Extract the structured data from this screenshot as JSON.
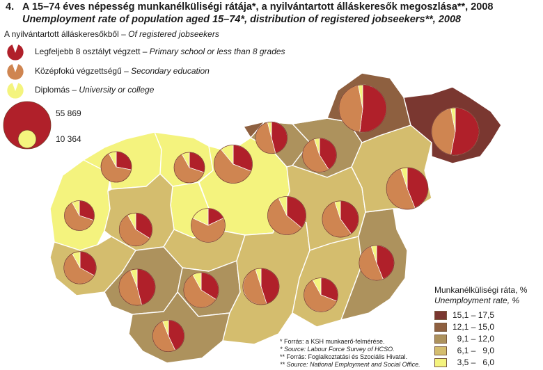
{
  "title": {
    "number": "4.",
    "hungarian": "A 15–74 éves népesség munkanélküliségi rátája*, a nyilvántartott álláskeresők megoszlása**, 2008",
    "english": "Unemployment rate of population aged 15–74*, distribution of registered jobseekers**, 2008"
  },
  "pie_legend": {
    "heading_hu": "A nyilvántartott álláskeresőkből – ",
    "heading_en": "Of registered jobseekers",
    "items": [
      {
        "hu": "Legfeljebb 8 osztályt végzett – ",
        "en": "Primary school or less than 8 grades",
        "color": "#b0202a"
      },
      {
        "hu": "Középfokú végzettségű – ",
        "en": "Secondary education",
        "color": "#cf8551"
      },
      {
        "hu": "Diplomás – ",
        "en": "University or college",
        "color": "#f4f47e"
      }
    ],
    "size_max": "55 869",
    "size_min": "10 364"
  },
  "rate_legend": {
    "title_hu": "Munkanélküliségi ráta, %",
    "title_en": "Unemployment rate, %",
    "classes": [
      {
        "label": "15,1 – 17,5",
        "color": "#7a3730"
      },
      {
        "label": "12,1 – 15,0",
        "color": "#8e6040"
      },
      {
        "label": "  9,1 – 12,0",
        "color": "#ad925d"
      },
      {
        "label": "  6,1 –   9,0",
        "color": "#d4bd6e"
      },
      {
        "label": "  3,5 –   6,0",
        "color": "#f4f37e"
      }
    ]
  },
  "notes": [
    "*  Forrás: a KSH munkaerő-felmérése.",
    "*  Source: Labour Force Survey of HCSO.",
    "** Forrás: Foglalkoztatási és Szociális Hivatal.",
    "** Source: National Employment and Social Office."
  ],
  "regions": [
    {
      "id": "vas",
      "rate_class": 4,
      "primary": 0.3,
      "secondary": 0.62,
      "univ": 0.08,
      "jobseekers_scale": 0.48
    },
    {
      "id": "gyor",
      "rate_class": 4,
      "primary": 0.28,
      "secondary": 0.64,
      "univ": 0.08,
      "jobseekers_scale": 0.5
    },
    {
      "id": "komarom",
      "rate_class": 4,
      "primary": 0.3,
      "secondary": 0.62,
      "univ": 0.08,
      "jobseekers_scale": 0.5
    },
    {
      "id": "pest",
      "rate_class": 4,
      "primary": 0.31,
      "secondary": 0.58,
      "univ": 0.11,
      "jobseekers_scale": 0.73
    },
    {
      "id": "budapest",
      "rate_class": 4,
      "primary": 0.18,
      "secondary": 0.64,
      "univ": 0.18,
      "jobseekers_scale": 0.6
    },
    {
      "id": "veszprem",
      "rate_class": 3,
      "primary": 0.34,
      "secondary": 0.58,
      "univ": 0.08,
      "jobseekers_scale": 0.57
    },
    {
      "id": "fejer",
      "rate_class": 3,
      "primary": 0.34,
      "secondary": 0.58,
      "univ": 0.08,
      "jobseekers_scale": 0.63
    },
    {
      "id": "zala",
      "rate_class": 3,
      "primary": 0.33,
      "secondary": 0.59,
      "univ": 0.08,
      "jobseekers_scale": 0.55
    },
    {
      "id": "nograd",
      "rate_class": 2,
      "primary": 0.46,
      "secondary": 0.5,
      "univ": 0.04,
      "jobseekers_scale": 0.53
    },
    {
      "id": "somogy",
      "rate_class": 2,
      "primary": 0.46,
      "secondary": 0.48,
      "univ": 0.06,
      "jobseekers_scale": 0.67
    },
    {
      "id": "tolna",
      "rate_class": 2,
      "primary": 0.43,
      "secondary": 0.51,
      "univ": 0.06,
      "jobseekers_scale": 0.53
    },
    {
      "id": "baranya",
      "rate_class": 2,
      "primary": 0.45,
      "secondary": 0.5,
      "univ": 0.05,
      "jobseekers_scale": 0.67
    },
    {
      "id": "heves",
      "rate_class": 2,
      "primary": 0.41,
      "secondary": 0.54,
      "univ": 0.05,
      "jobseekers_scale": 0.6
    },
    {
      "id": "bekes",
      "rate_class": 2,
      "primary": 0.44,
      "secondary": 0.51,
      "univ": 0.05,
      "jobseekers_scale": 0.63
    },
    {
      "id": "bacs",
      "rate_class": 3,
      "primary": 0.36,
      "secondary": 0.57,
      "univ": 0.07,
      "jobseekers_scale": 0.73
    },
    {
      "id": "jasz",
      "rate_class": 3,
      "primary": 0.4,
      "secondary": 0.55,
      "univ": 0.05,
      "jobseekers_scale": 0.67
    },
    {
      "id": "csongrad",
      "rate_class": 3,
      "primary": 0.31,
      "secondary": 0.61,
      "univ": 0.08,
      "jobseekers_scale": 0.6
    },
    {
      "id": "hajdu",
      "rate_class": 3,
      "primary": 0.44,
      "secondary": 0.51,
      "univ": 0.05,
      "jobseekers_scale": 0.83
    },
    {
      "id": "borsod",
      "rate_class": 1,
      "primary": 0.52,
      "secondary": 0.45,
      "univ": 0.03,
      "jobseekers_scale": 1.0
    },
    {
      "id": "szabolcs",
      "rate_class": 0,
      "primary": 0.53,
      "secondary": 0.44,
      "univ": 0.03,
      "jobseekers_scale": 1.0
    }
  ]
}
